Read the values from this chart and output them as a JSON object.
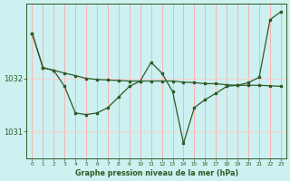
{
  "title": "Graphe pression niveau de la mer (hPa)",
  "background_color": "#cdf0f0",
  "plot_bg_color": "#cdf0f0",
  "line_color": "#2d5a27",
  "marker_color": "#2d5a27",
  "xlim": [
    -0.5,
    23.5
  ],
  "ylim": [
    1030.5,
    1033.4
  ],
  "yticks": [
    1031,
    1032
  ],
  "xticks": [
    0,
    1,
    2,
    3,
    4,
    5,
    6,
    7,
    8,
    9,
    10,
    11,
    12,
    13,
    14,
    15,
    16,
    17,
    18,
    19,
    20,
    21,
    22,
    23
  ],
  "series1_x": [
    0,
    1,
    2,
    3,
    4,
    5,
    6,
    7,
    8,
    9,
    10,
    11,
    12,
    13,
    14,
    15,
    16,
    17,
    18,
    19,
    20,
    21,
    22,
    23
  ],
  "series1_y": [
    1032.85,
    1032.2,
    1032.15,
    1032.1,
    1032.05,
    1032.0,
    1031.98,
    1031.97,
    1031.96,
    1031.95,
    1031.95,
    1031.95,
    1031.95,
    1031.95,
    1031.93,
    1031.92,
    1031.9,
    1031.9,
    1031.88,
    1031.87,
    1031.87,
    1031.87,
    1031.86,
    1031.85
  ],
  "series2_x": [
    0,
    1,
    2,
    3,
    4,
    5,
    6,
    7,
    8,
    9,
    10,
    11,
    12,
    13,
    14,
    15,
    16,
    17,
    18,
    19,
    20,
    21,
    22,
    23
  ],
  "series2_y": [
    1032.85,
    1032.2,
    1032.15,
    1031.85,
    1031.35,
    1031.32,
    1031.35,
    1031.45,
    1031.65,
    1031.85,
    1031.95,
    1032.3,
    1032.1,
    1031.75,
    1030.78,
    1031.45,
    1031.6,
    1031.72,
    1031.85,
    1031.87,
    1031.92,
    1032.02,
    1033.1,
    1033.25
  ],
  "vgrid_color": "#ffaaaa",
  "hgrid_color": "#ffcccc"
}
